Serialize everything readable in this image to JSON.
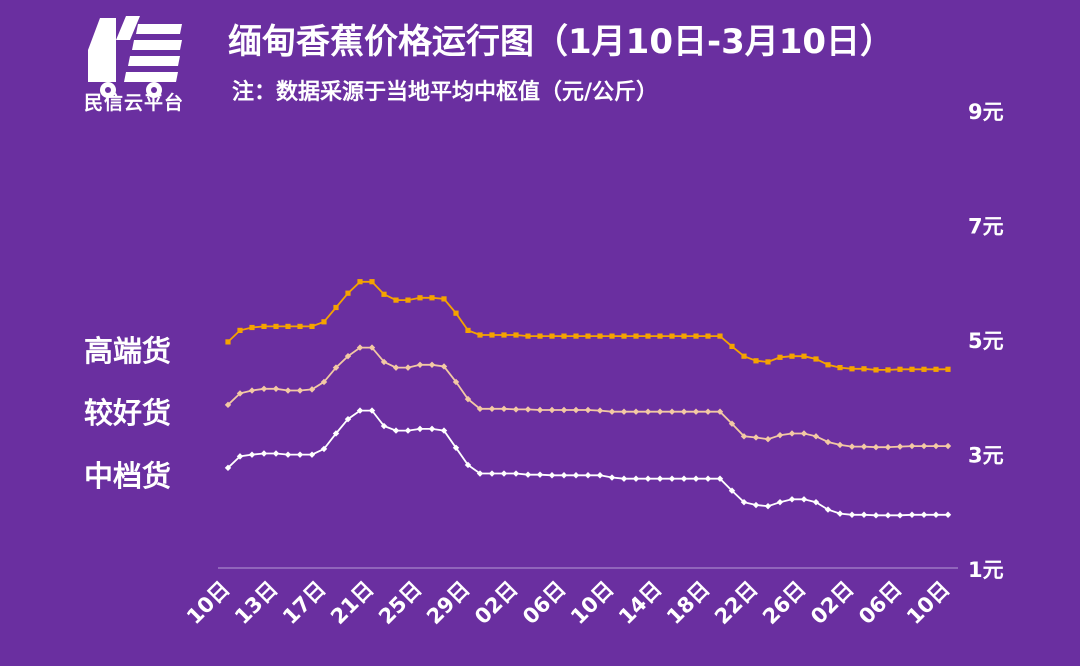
{
  "logo": {
    "icon": "truck-logo-icon",
    "text": "民信云平台"
  },
  "header": {
    "title": "缅甸香蕉价格运行图（1月10日-3月10日）",
    "note": "注：数据采源于当地平均中枢值（元/公斤）"
  },
  "colors": {
    "background": "#6a2fa0",
    "high": "#f5a300",
    "good": "#f3c9a4",
    "mid": "#ffffff"
  },
  "chart_data": {
    "type": "line",
    "title": "缅甸香蕉价格运行图（1月10日-3月10日）",
    "subtitle": "注：数据采源于当地平均中枢值（元/公斤）",
    "x_tick_labels": [
      "10日",
      "13日",
      "17日",
      "21日",
      "25日",
      "29日",
      "02日",
      "06日",
      "10日",
      "14日",
      "18日",
      "22日",
      "26日",
      "02日",
      "06日",
      "10日"
    ],
    "y_axis": {
      "position": "right",
      "ylim": [
        1,
        9
      ],
      "ticks": [
        1,
        3,
        5,
        7,
        9
      ],
      "tick_labels": [
        "1元",
        "3元",
        "5元",
        "7元",
        "9元"
      ]
    },
    "grid": false,
    "legend": "left, labels beside lines",
    "series": [
      {
        "name": "高端货",
        "values": [
          4.95,
          5.15,
          5.2,
          5.22,
          5.22,
          5.22,
          5.22,
          5.22,
          5.3,
          5.55,
          5.8,
          6.0,
          6.0,
          5.78,
          5.68,
          5.68,
          5.72,
          5.72,
          5.7,
          5.45,
          5.15,
          5.07,
          5.07,
          5.07,
          5.07,
          5.05,
          5.05,
          5.05,
          5.05,
          5.05,
          5.05,
          5.05,
          5.05,
          5.05,
          5.05,
          5.05,
          5.05,
          5.05,
          5.05,
          5.05,
          5.05,
          5.05,
          4.87,
          4.7,
          4.62,
          4.6,
          4.68,
          4.7,
          4.7,
          4.65,
          4.55,
          4.5,
          4.48,
          4.48,
          4.46,
          4.46,
          4.47,
          4.47,
          4.47,
          4.47,
          4.47
        ]
      },
      {
        "name": "较好货",
        "values": [
          3.85,
          4.05,
          4.1,
          4.13,
          4.13,
          4.1,
          4.1,
          4.12,
          4.25,
          4.5,
          4.7,
          4.85,
          4.85,
          4.6,
          4.5,
          4.5,
          4.55,
          4.55,
          4.52,
          4.25,
          3.95,
          3.78,
          3.78,
          3.78,
          3.77,
          3.77,
          3.76,
          3.76,
          3.76,
          3.76,
          3.76,
          3.75,
          3.73,
          3.73,
          3.73,
          3.73,
          3.73,
          3.73,
          3.73,
          3.73,
          3.73,
          3.73,
          3.52,
          3.3,
          3.28,
          3.25,
          3.32,
          3.35,
          3.35,
          3.3,
          3.2,
          3.15,
          3.12,
          3.12,
          3.11,
          3.11,
          3.12,
          3.13,
          3.13,
          3.13,
          3.13
        ]
      },
      {
        "name": "中档货",
        "values": [
          2.75,
          2.95,
          2.98,
          3.0,
          3.0,
          2.98,
          2.98,
          2.98,
          3.08,
          3.35,
          3.6,
          3.75,
          3.75,
          3.48,
          3.4,
          3.4,
          3.43,
          3.43,
          3.4,
          3.1,
          2.8,
          2.65,
          2.65,
          2.65,
          2.65,
          2.63,
          2.63,
          2.62,
          2.62,
          2.62,
          2.62,
          2.62,
          2.58,
          2.56,
          2.56,
          2.56,
          2.56,
          2.56,
          2.56,
          2.56,
          2.56,
          2.56,
          2.35,
          2.15,
          2.1,
          2.08,
          2.15,
          2.2,
          2.2,
          2.15,
          2.02,
          1.95,
          1.93,
          1.93,
          1.92,
          1.92,
          1.92,
          1.93,
          1.93,
          1.93,
          1.93
        ]
      }
    ]
  }
}
